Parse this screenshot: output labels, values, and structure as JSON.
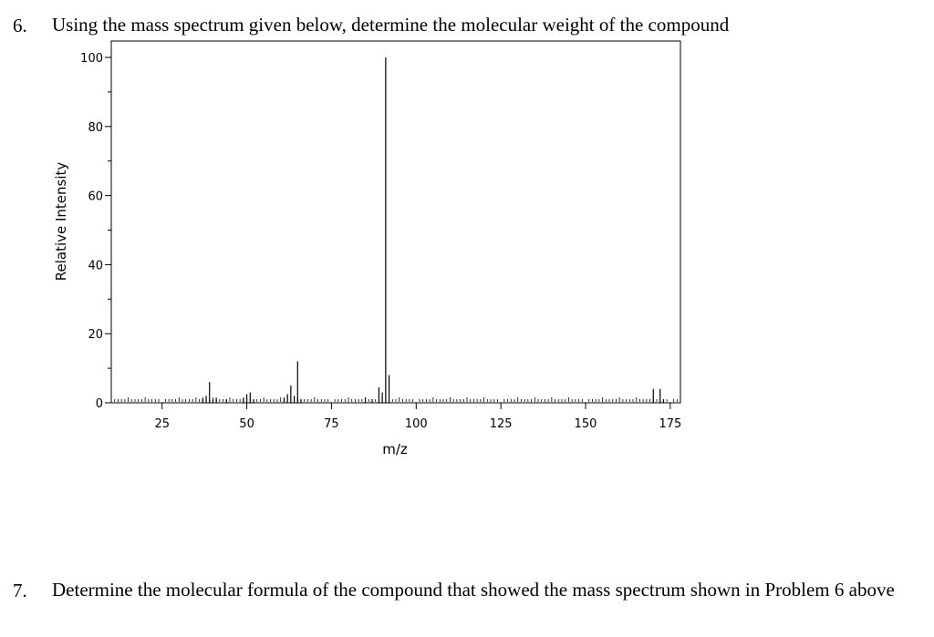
{
  "questions": [
    {
      "number": "6.",
      "text": "Using the mass spectrum given below, determine the molecular weight of the compound"
    },
    {
      "number": "7.",
      "text": "Determine the molecular formula of the compound that showed the mass spectrum shown in Problem 6 above"
    }
  ],
  "chart_data": {
    "type": "bar",
    "title": "",
    "xlabel": "m/z",
    "ylabel": "Relative Intensity",
    "xlim": [
      10,
      178
    ],
    "ylim": [
      0,
      100
    ],
    "x_ticks": [
      25,
      50,
      75,
      100,
      125,
      150,
      175
    ],
    "y_ticks": [
      0,
      20,
      40,
      60,
      80,
      100
    ],
    "grid": false,
    "peaks": [
      {
        "mz": 37,
        "intensity": 1.5
      },
      {
        "mz": 38,
        "intensity": 2.0
      },
      {
        "mz": 39,
        "intensity": 6.0
      },
      {
        "mz": 40,
        "intensity": 1.0
      },
      {
        "mz": 41,
        "intensity": 1.5
      },
      {
        "mz": 44,
        "intensity": 1.0
      },
      {
        "mz": 49,
        "intensity": 1.5
      },
      {
        "mz": 50,
        "intensity": 2.5
      },
      {
        "mz": 51,
        "intensity": 3.0
      },
      {
        "mz": 52,
        "intensity": 1.0
      },
      {
        "mz": 61,
        "intensity": 1.5
      },
      {
        "mz": 62,
        "intensity": 2.5
      },
      {
        "mz": 63,
        "intensity": 5.0
      },
      {
        "mz": 64,
        "intensity": 2.0
      },
      {
        "mz": 65,
        "intensity": 12.0
      },
      {
        "mz": 66,
        "intensity": 1.0
      },
      {
        "mz": 85,
        "intensity": 1.5
      },
      {
        "mz": 87,
        "intensity": 1.0
      },
      {
        "mz": 89,
        "intensity": 4.5
      },
      {
        "mz": 90,
        "intensity": 3.0
      },
      {
        "mz": 91,
        "intensity": 100.0
      },
      {
        "mz": 92,
        "intensity": 8.0
      },
      {
        "mz": 170,
        "intensity": 4.0
      },
      {
        "mz": 172,
        "intensity": 4.0
      },
      {
        "mz": 173,
        "intensity": 1.0
      }
    ]
  }
}
